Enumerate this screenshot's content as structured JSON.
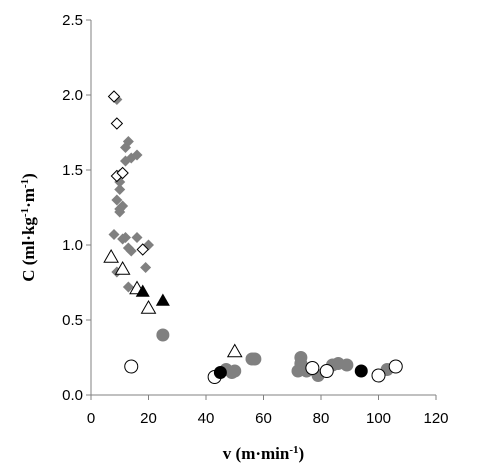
{
  "chart_data": {
    "type": "scatter",
    "xlabel": "v (m·min",
    "xlabel_sup": "-1",
    "xlabel_close": ")",
    "ylabel": "C (ml·kg",
    "ylabel_sup1": "-1",
    "ylabel_mid": "·m",
    "ylabel_sup2": "-1",
    "ylabel_close": ")",
    "xlim": [
      0,
      120
    ],
    "ylim": [
      0,
      2.5
    ],
    "x_ticks": [
      "0",
      "20",
      "40",
      "60",
      "80",
      "100",
      "120"
    ],
    "y_ticks": [
      "0.0",
      "0.5",
      "1.0",
      "1.5",
      "2.0",
      "2.5"
    ],
    "grid": false,
    "legend": "none",
    "colors": {
      "grey": "#808080",
      "black": "#000000",
      "open": "#ffffff",
      "axis": "#808080"
    },
    "series": [
      {
        "marker": "diamond-filled-grey",
        "points": [
          [
            9,
            1.97
          ],
          [
            10,
            1.47
          ],
          [
            12,
            1.65
          ],
          [
            13,
            1.69
          ],
          [
            12,
            1.56
          ],
          [
            14,
            1.58
          ],
          [
            16,
            1.6
          ],
          [
            10,
            1.42
          ],
          [
            10,
            1.37
          ],
          [
            9,
            1.3
          ],
          [
            11,
            1.26
          ],
          [
            10,
            1.24
          ],
          [
            10,
            1.22
          ],
          [
            8,
            1.07
          ],
          [
            11,
            1.04
          ],
          [
            12,
            1.05
          ],
          [
            16,
            1.05
          ],
          [
            20,
            1.0
          ],
          [
            13,
            0.98
          ],
          [
            14,
            0.96
          ],
          [
            9,
            0.82
          ],
          [
            19,
            0.85
          ],
          [
            13,
            0.72
          ]
        ]
      },
      {
        "marker": "diamond-open",
        "points": [
          [
            8,
            1.99
          ],
          [
            9,
            1.81
          ],
          [
            9,
            1.46
          ],
          [
            11,
            1.48
          ],
          [
            18,
            0.97
          ]
        ]
      },
      {
        "marker": "triangle-open",
        "points": [
          [
            7,
            0.92
          ],
          [
            11,
            0.84
          ],
          [
            16,
            0.71
          ],
          [
            20,
            0.58
          ],
          [
            50,
            0.29
          ]
        ]
      },
      {
        "marker": "triangle-filled-black",
        "points": [
          [
            18,
            0.69
          ],
          [
            25,
            0.63
          ]
        ]
      },
      {
        "marker": "circle-filled-grey",
        "points": [
          [
            25,
            0.4
          ],
          [
            47,
            0.17
          ],
          [
            49,
            0.15
          ],
          [
            50,
            0.16
          ],
          [
            56,
            0.24
          ],
          [
            57,
            0.24
          ],
          [
            72,
            0.16
          ],
          [
            73,
            0.25
          ],
          [
            73,
            0.21
          ],
          [
            74,
            0.18
          ],
          [
            75,
            0.16
          ],
          [
            77,
            0.17
          ],
          [
            79,
            0.13
          ],
          [
            84,
            0.2
          ],
          [
            86,
            0.21
          ],
          [
            89,
            0.2
          ],
          [
            103,
            0.17
          ]
        ]
      },
      {
        "marker": "circle-open",
        "points": [
          [
            14,
            0.19
          ],
          [
            43,
            0.12
          ],
          [
            77,
            0.18
          ],
          [
            82,
            0.16
          ],
          [
            100,
            0.13
          ],
          [
            106,
            0.19
          ]
        ]
      },
      {
        "marker": "circle-filled-black",
        "points": [
          [
            45,
            0.15
          ],
          [
            94,
            0.16
          ]
        ]
      }
    ]
  }
}
